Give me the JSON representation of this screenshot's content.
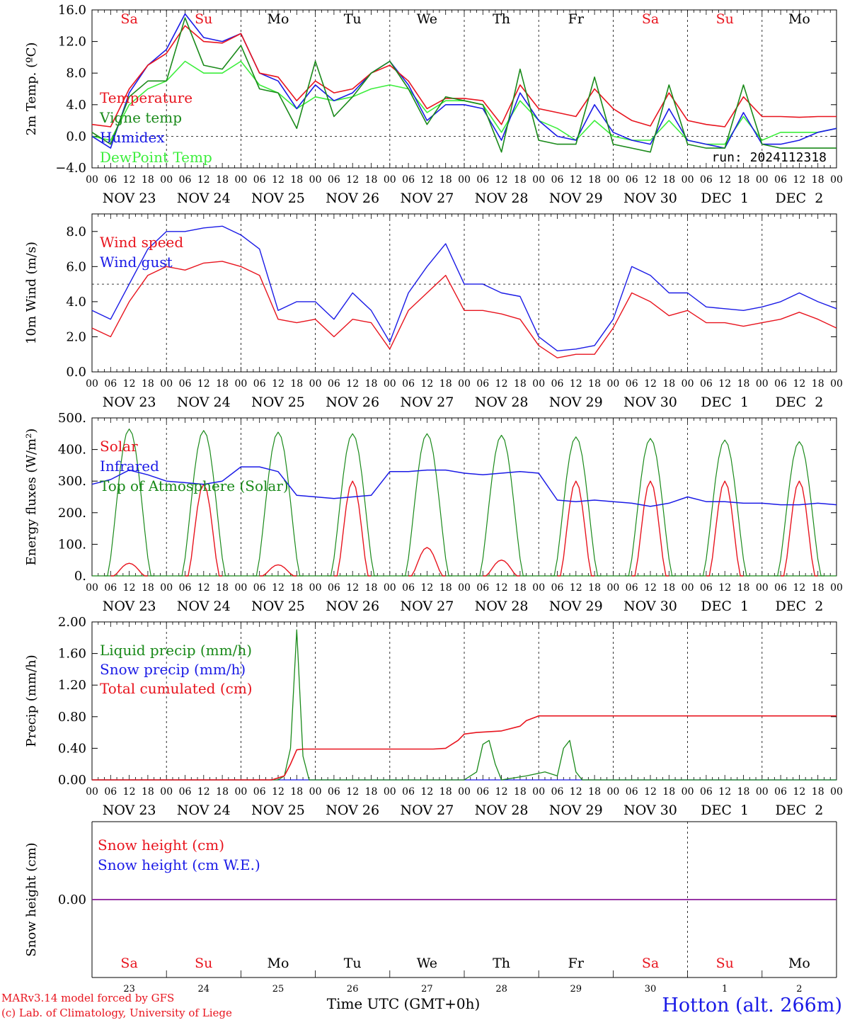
{
  "colors": {
    "red": "#e8141e",
    "green": "#1a8a1a",
    "blue": "#1a1ae6",
    "lightgreen": "#3cee3c",
    "purple": "#8a1a9a",
    "axis": "#000000"
  },
  "time_axis": {
    "hour_labels": [
      "00",
      "06",
      "12",
      "18"
    ],
    "date_labels": [
      "NOV 23",
      "NOV 24",
      "NOV 25",
      "NOV 26",
      "NOV 27",
      "NOV 28",
      "NOV 29",
      "NOV 30",
      "DEC  1",
      "DEC  2"
    ],
    "day_labels": [
      {
        "text": "Sa",
        "color": "red"
      },
      {
        "text": "Su",
        "color": "red"
      },
      {
        "text": "Mo",
        "color": "black"
      },
      {
        "text": "Tu",
        "color": "black"
      },
      {
        "text": "We",
        "color": "black"
      },
      {
        "text": "Th",
        "color": "black"
      },
      {
        "text": "Fr",
        "color": "black"
      },
      {
        "text": "Sa",
        "color": "red"
      },
      {
        "text": "Su",
        "color": "red"
      },
      {
        "text": "Mo",
        "color": "black"
      }
    ],
    "day_numbers": [
      "23",
      "24",
      "25",
      "26",
      "27",
      "28",
      "29",
      "30",
      "1",
      "2"
    ],
    "axis_title": "Time UTC (GMT+0h)"
  },
  "footer": {
    "credit_line1": "MARv3.14 model forced by GFS",
    "credit_line2": "(c) Lab. of Climatology, University of Liege",
    "station": "Hotton (alt. 266m)"
  },
  "chart_data": [
    {
      "type": "line",
      "ylabel": "2m Temp. (ºC)",
      "ylim": [
        -4,
        16
      ],
      "yticks": [
        "−4.0",
        "0.0",
        "4.0",
        "8.0",
        "12.0",
        "16.0"
      ],
      "reference_line": 0,
      "run_label": "run: 2024112318",
      "legend": [
        "Temperature",
        "Vigne temp",
        "Humidex",
        "DewPoint Temp"
      ],
      "x_hours": [
        0,
        6,
        12,
        18,
        24,
        30,
        36,
        42,
        48,
        54,
        60,
        66,
        72,
        78,
        84,
        90,
        96,
        102,
        108,
        114,
        120,
        126,
        132,
        138,
        144,
        150,
        156,
        162,
        168,
        174,
        180,
        186,
        192,
        198,
        204,
        210,
        216,
        222,
        228,
        234,
        240
      ],
      "series": [
        {
          "name": "Temperature",
          "color": "red",
          "values": [
            1.5,
            1.2,
            6,
            9,
            10.5,
            14,
            12,
            11.8,
            13,
            8,
            7.5,
            4.5,
            7,
            5.5,
            6,
            8,
            9,
            7,
            3.5,
            4.8,
            4.8,
            4.5,
            1.5,
            6.5,
            3.5,
            3,
            2.5,
            6,
            3.5,
            2,
            1.3,
            5.5,
            2,
            1.5,
            1.2,
            5,
            2.5,
            2.5,
            2.4,
            2.5,
            2.5
          ]
        },
        {
          "name": "Vigne temp",
          "color": "green",
          "values": [
            0.5,
            -1,
            5,
            7,
            7,
            15,
            9,
            8.5,
            11.5,
            6,
            5.5,
            1,
            9.5,
            2.5,
            5,
            8,
            9.5,
            6,
            1.5,
            5,
            4.5,
            4,
            -2,
            8.5,
            -0.5,
            -1,
            -1,
            7.5,
            -1,
            -1.5,
            -2,
            6.5,
            -1,
            -1.5,
            -1.5,
            6.5,
            -1,
            -1.5,
            -1.5,
            -1.5,
            -1.5
          ]
        },
        {
          "name": "Humidex",
          "color": "blue",
          "values": [
            0,
            -1.5,
            5.5,
            9,
            11,
            15.5,
            12.5,
            12,
            13,
            8,
            7,
            3.5,
            6.5,
            4.5,
            5.5,
            8,
            9.5,
            6.5,
            2,
            4,
            4,
            3.5,
            -0.5,
            5.5,
            2,
            0,
            -0.5,
            4,
            0.5,
            -0.5,
            -1,
            3.5,
            -0.5,
            -1,
            -1.5,
            3,
            -1,
            -1,
            -0.5,
            0.5,
            1
          ]
        },
        {
          "name": "DewPoint Temp",
          "color": "lightgreen",
          "values": [
            0,
            -0.5,
            4,
            6,
            7,
            9.5,
            8,
            8,
            9.5,
            6.5,
            5.5,
            3.5,
            5,
            4.5,
            5,
            6,
            6.5,
            6,
            3,
            4.5,
            4.5,
            4,
            0.5,
            4.5,
            2,
            1,
            -0.5,
            2,
            0,
            -0.5,
            -0.5,
            2,
            -0.5,
            -1,
            -1,
            2.5,
            -0.5,
            0.5,
            0.5,
            0.5,
            1
          ]
        }
      ]
    },
    {
      "type": "line",
      "ylabel": "10m Wind (m/s)",
      "ylim": [
        0,
        9
      ],
      "yticks": [
        "0.0",
        "2.0",
        "4.0",
        "6.0",
        "8.0"
      ],
      "reference_line": 5,
      "legend": [
        "Wind speed",
        "Wind gust"
      ],
      "x_hours": [
        0,
        6,
        12,
        18,
        24,
        30,
        36,
        42,
        48,
        54,
        60,
        66,
        72,
        78,
        84,
        90,
        96,
        102,
        108,
        114,
        120,
        126,
        132,
        138,
        144,
        150,
        156,
        162,
        168,
        174,
        180,
        186,
        192,
        198,
        204,
        210,
        216,
        222,
        228,
        234,
        240
      ],
      "series": [
        {
          "name": "Wind speed",
          "color": "red",
          "values": [
            2.5,
            2,
            4,
            5.5,
            6,
            5.8,
            6.2,
            6.3,
            6,
            5.5,
            3,
            2.8,
            3,
            2,
            3,
            2.8,
            1.3,
            3.5,
            4.5,
            5.5,
            3.5,
            3.5,
            3.3,
            3,
            1.5,
            0.8,
            1,
            1,
            2.5,
            4.5,
            4,
            3.2,
            3.5,
            2.8,
            2.8,
            2.6,
            2.8,
            3,
            3.4,
            3,
            2.5
          ]
        },
        {
          "name": "Wind gust",
          "color": "blue",
          "values": [
            3.5,
            3,
            5,
            7,
            8,
            8,
            8.2,
            8.3,
            7.8,
            7,
            3.5,
            4,
            4,
            3,
            4.5,
            3.5,
            1.7,
            4.5,
            6,
            7.3,
            5,
            5,
            4.5,
            4.3,
            2,
            1.2,
            1.3,
            1.5,
            3,
            6,
            5.5,
            4.5,
            4.5,
            3.7,
            3.6,
            3.5,
            3.7,
            4,
            4.5,
            4,
            3.6
          ]
        }
      ]
    },
    {
      "type": "line",
      "ylabel": "Energy fluxes (W/m²)",
      "ylim": [
        0,
        500
      ],
      "yticks": [
        "0.",
        "100.",
        "200.",
        "300.",
        "400.",
        "500."
      ],
      "legend": [
        "Solar",
        "Infrared",
        "Top of Atmosphere (Solar)"
      ],
      "infrared": {
        "x_hours": [
          0,
          6,
          12,
          18,
          24,
          30,
          36,
          42,
          48,
          54,
          60,
          66,
          72,
          78,
          84,
          90,
          96,
          102,
          108,
          114,
          120,
          126,
          132,
          138,
          144,
          150,
          156,
          162,
          168,
          174,
          180,
          186,
          192,
          198,
          204,
          210,
          216,
          222,
          228,
          234,
          240
        ],
        "values": [
          290,
          305,
          335,
          320,
          300,
          295,
          290,
          300,
          345,
          345,
          330,
          255,
          250,
          245,
          250,
          255,
          330,
          330,
          335,
          335,
          325,
          320,
          325,
          330,
          325,
          240,
          235,
          240,
          235,
          230,
          220,
          230,
          250,
          235,
          235,
          230,
          230,
          225,
          225,
          230,
          225
        ]
      },
      "solar_peaks": [
        40,
        290,
        35,
        300,
        90,
        50,
        300,
        300,
        300,
        300
      ],
      "toa_peaks": [
        465,
        460,
        455,
        450,
        450,
        445,
        440,
        435,
        430,
        425
      ],
      "peak_hour_in_day": 12
    },
    {
      "type": "line",
      "ylabel": "Precip (mm/h)",
      "ylim": [
        0,
        2
      ],
      "yticks": [
        "0.00",
        "0.40",
        "0.80",
        "1.20",
        "1.60",
        "2.00"
      ],
      "legend": [
        "Liquid precip (mm/h)",
        "Snow precip (mm/h)",
        "Total cumulated (cm)"
      ],
      "liquid": {
        "x_hours": [
          0,
          60,
          62,
          64,
          66,
          68,
          70,
          72,
          120,
          124,
          126,
          128,
          130,
          132,
          140,
          146,
          150,
          152,
          154,
          156,
          158,
          160,
          240
        ],
        "values": [
          0,
          0,
          0.05,
          0.4,
          1.9,
          0.3,
          0,
          0,
          0,
          0.1,
          0.45,
          0.5,
          0.2,
          0,
          0.05,
          0.1,
          0.05,
          0.4,
          0.5,
          0.1,
          0,
          0,
          0
        ]
      },
      "snow": {
        "x_hours": [
          0,
          240
        ],
        "values": [
          0,
          0
        ]
      },
      "cumulated": {
        "x_hours": [
          0,
          58,
          62,
          64,
          66,
          68,
          110,
          114,
          116,
          118,
          120,
          124,
          132,
          138,
          140,
          144,
          240
        ],
        "values": [
          0,
          0,
          0.05,
          0.2,
          0.38,
          0.39,
          0.39,
          0.4,
          0.45,
          0.5,
          0.58,
          0.6,
          0.62,
          0.68,
          0.75,
          0.81,
          0.81
        ]
      }
    },
    {
      "type": "line",
      "ylabel": "Snow height (cm)",
      "ylim": [
        -0.1,
        0.1
      ],
      "yticks": [
        "0.00"
      ],
      "legend": [
        "Snow height (cm)",
        "Snow height (cm W.E.)"
      ],
      "x_hours": [
        0,
        240
      ],
      "values": [
        0,
        0
      ]
    }
  ]
}
